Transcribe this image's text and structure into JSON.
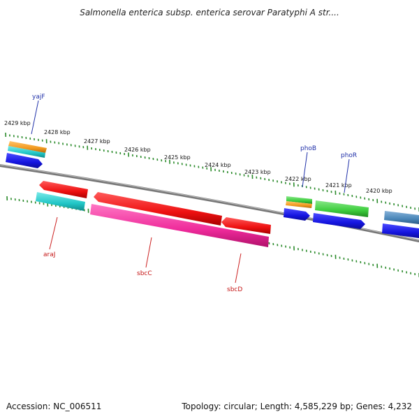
{
  "title": "Salmonella enterica subsp. enterica serovar Paratyphi A str....",
  "footer": {
    "accession": "Accession: NC_006511",
    "topology": "Topology: circular; Length: 4,585,229 bp; Genes: 4,232"
  },
  "axis": {
    "tick_labels": [
      "2429 kbp",
      "2428 kbp",
      "2427 kbp",
      "2426 kbp",
      "2425 kbp",
      "2424 kbp",
      "2423 kbp",
      "2422 kbp",
      "2421 kbp",
      "2420 kbp"
    ]
  },
  "genes": {
    "labels": {
      "yajF": "yajF",
      "phoB": "phoB",
      "phoR": "phoR",
      "araJ": "araJ",
      "sbcC": "sbcC",
      "sbcD": "sbcD"
    }
  },
  "colors": {
    "backbone": "#777777",
    "tick": "#2a8a2a",
    "cds_blue": "#1a1ae6",
    "orange": "#f2991f",
    "cyan": "#21c7c7",
    "red": "#ee1111",
    "pink": "#ee2a9a",
    "green": "#3ccc3c",
    "steel": "#4a86b8",
    "label_top": "#1f2fa8",
    "label_bottom": "#c41212"
  }
}
